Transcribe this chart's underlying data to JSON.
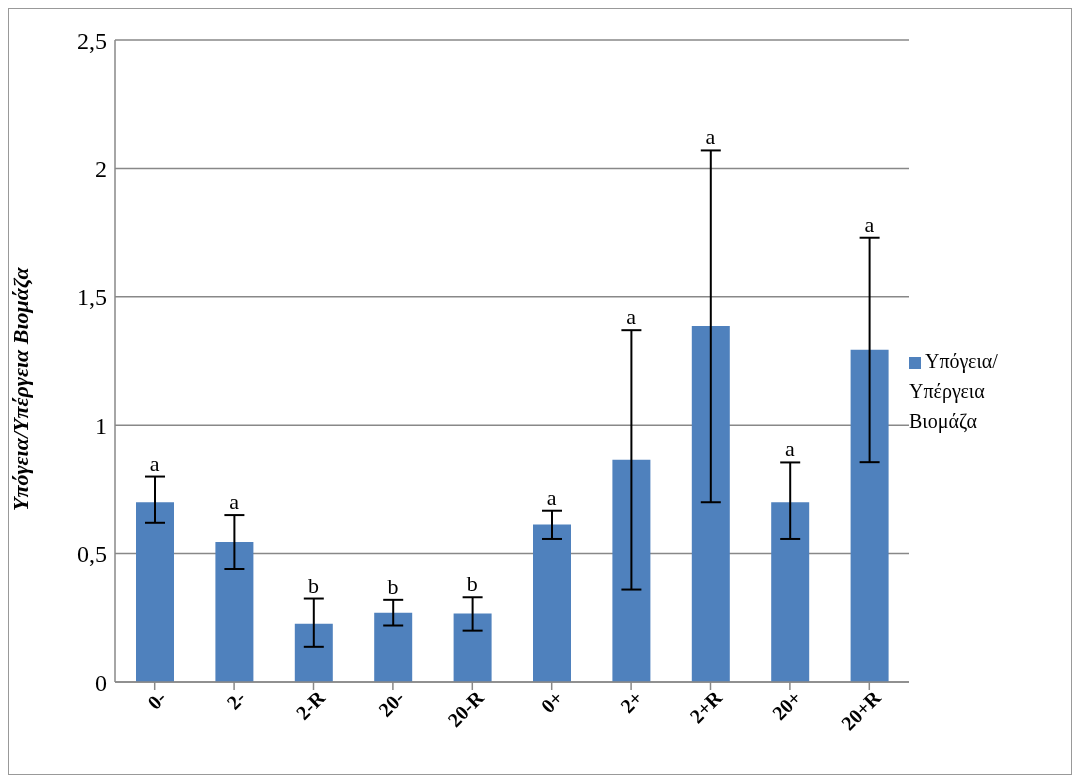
{
  "chart_data": {
    "type": "bar",
    "ylabel": "Υπόγεια/Υπέργεια Βιομάζα",
    "categories": [
      "0-",
      "2-",
      "2-R",
      "20-",
      "20-R",
      "0+",
      "2+",
      "2+R",
      "20+",
      "20+R"
    ],
    "series": [
      {
        "name": "Υπόγεια/Υπέργεια Βιομάζα",
        "color": "#4f81bd",
        "values": [
          0.7,
          0.545,
          0.227,
          0.27,
          0.267,
          0.613,
          0.865,
          1.386,
          0.7,
          1.294
        ],
        "errors": [
          [
            0.62,
            0.8
          ],
          [
            0.44,
            0.65
          ],
          [
            0.137,
            0.325
          ],
          [
            0.22,
            0.32
          ],
          [
            0.2,
            0.33
          ],
          [
            0.557,
            0.667
          ],
          [
            0.36,
            1.37
          ],
          [
            0.7,
            2.07
          ],
          [
            0.557,
            0.855
          ],
          [
            0.856,
            1.73
          ]
        ]
      }
    ],
    "ylim": [
      0,
      2.5
    ],
    "yticks": [
      0,
      {
        "value": 0.5,
        "label": "0,5"
      },
      1,
      {
        "value": 1.5,
        "label": "1,5"
      },
      2,
      {
        "value": 2.5,
        "label": "2,5"
      }
    ],
    "grid": "y",
    "legend": "right",
    "annotations": [
      {
        "text": "a",
        "x": "0-",
        "y": 0.8
      },
      {
        "text": "a",
        "x": "2-",
        "y": 0.65
      },
      {
        "text": "b",
        "x": "2-R",
        "y": 0.325
      },
      {
        "text": "b",
        "x": "20-",
        "y": 0.32
      },
      {
        "text": "b",
        "x": "20-R",
        "y": 0.33
      },
      {
        "text": "a",
        "x": "0+",
        "y": 0.667
      },
      {
        "text": "a",
        "x": "2+",
        "y": 1.37
      },
      {
        "text": "a",
        "x": "2+R",
        "y": 2.07
      },
      {
        "text": "a",
        "x": "20+",
        "y": 0.855
      },
      {
        "text": "a",
        "x": "20+R",
        "y": 1.73
      }
    ]
  }
}
